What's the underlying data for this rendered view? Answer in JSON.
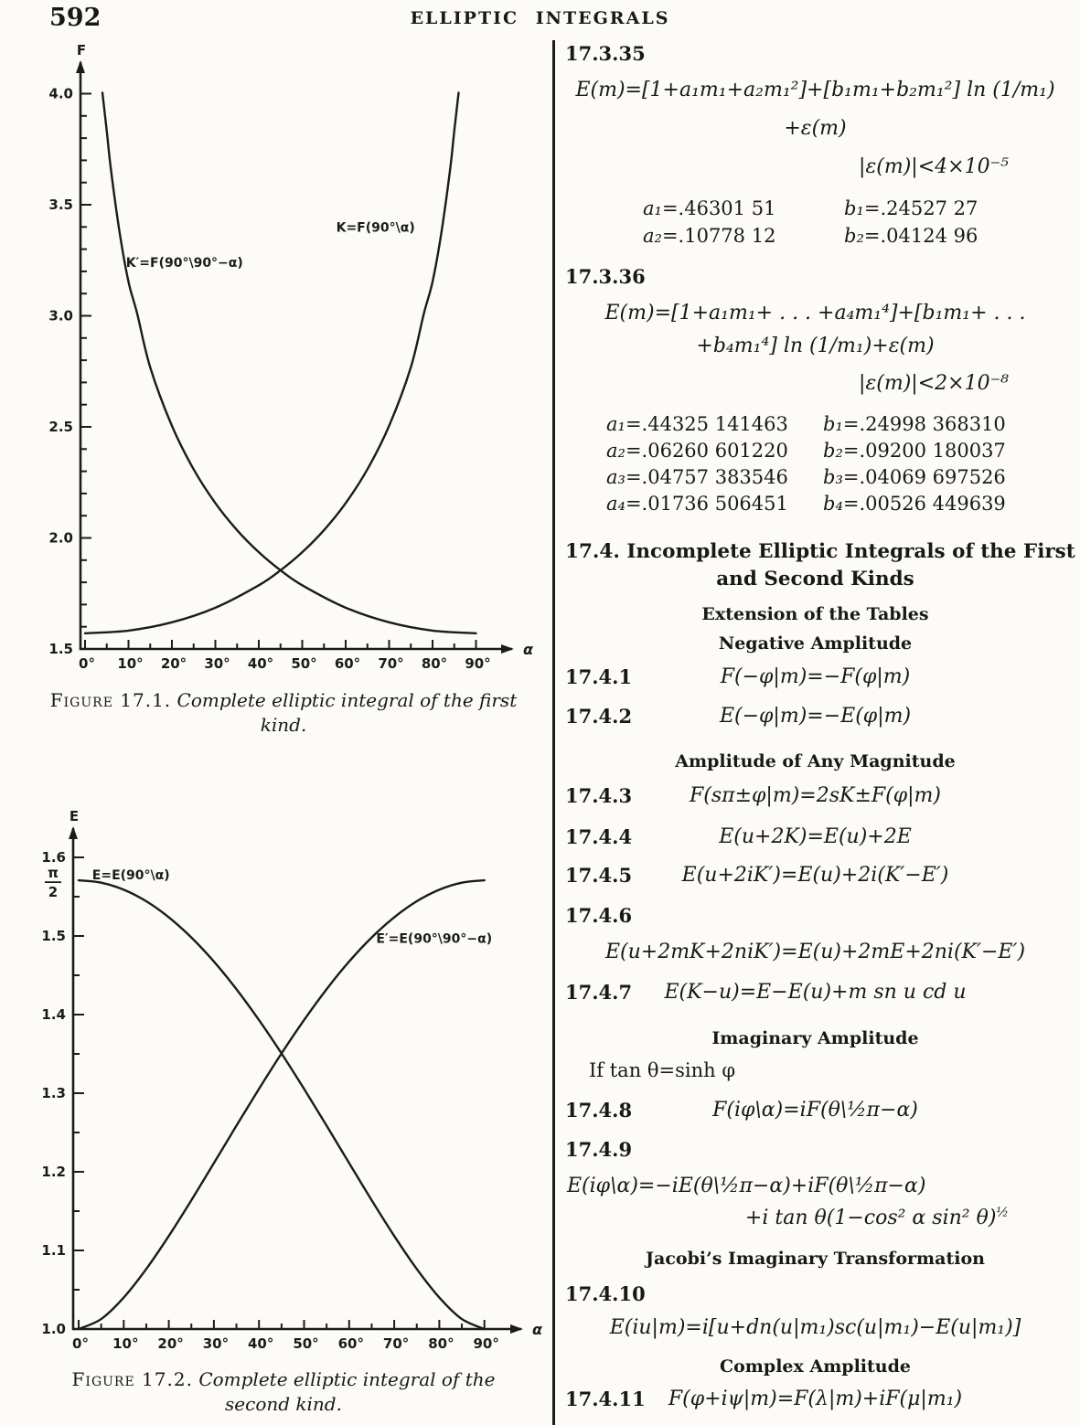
{
  "page": {
    "number": "592",
    "header": "ELLIPTIC INTEGRALS"
  },
  "eq17335": {
    "num": "17.3.35",
    "line1": "E(m)=[1+a₁m₁+a₂m₁²]+[b₁m₁+b₂m₁²] ln (1/m₁)",
    "line2": "+ε(m)",
    "bound": "|ε(m)|<4×10⁻⁵",
    "constants": [
      [
        "a₁",
        "=.46301 51",
        "b₁",
        "=.24527 27"
      ],
      [
        "a₂",
        "=.10778 12",
        "b₂",
        "=.04124 96"
      ]
    ]
  },
  "eq17336": {
    "num": "17.3.36",
    "line1": "E(m)=[1+a₁m₁+ . . . +a₄m₁⁴]+[b₁m₁+ . . .",
    "line2": "+b₄m₁⁴] ln (1/m₁)+ε(m)",
    "bound": "|ε(m)|<2×10⁻⁸",
    "constants": [
      [
        "a₁",
        "=.44325 141463",
        "b₁",
        "=.24998 368310"
      ],
      [
        "a₂",
        "=.06260 601220",
        "b₂",
        "=.09200 180037"
      ],
      [
        "a₃",
        "=.04757 383546",
        "b₃",
        "=.04069 697526"
      ],
      [
        "a₄",
        "=.01736 506451",
        "b₄",
        "=.00526 449639"
      ]
    ]
  },
  "s174": {
    "heading1": "17.4. Incomplete Elliptic Integrals of the First",
    "heading2": "and Second Kinds",
    "sub_extension": "Extension of the Tables",
    "sub_negative": "Negative Amplitude",
    "eq1": {
      "num": "17.4.1",
      "f": "F(−φ|m)=−F(φ|m)"
    },
    "eq2": {
      "num": "17.4.2",
      "f": "E(−φ|m)=−E(φ|m)"
    },
    "sub_any": "Amplitude of Any Magnitude",
    "eq3": {
      "num": "17.4.3",
      "f": "F(sπ±φ|m)=2sK±F(φ|m)"
    },
    "eq4": {
      "num": "17.4.4",
      "f": "E(u+2K)=E(u)+2E"
    },
    "eq5": {
      "num": "17.4.5",
      "f": "E(u+2iK′)=E(u)+2i(K′−E′)"
    },
    "eq6": {
      "num": "17.4.6",
      "f": "E(u+2mK+2niK′)=E(u)+2mE+2ni(K′−E′)"
    },
    "eq7": {
      "num": "17.4.7",
      "f": "E(K−u)=E−E(u)+m sn u cd u"
    },
    "sub_imag": "Imaginary Amplitude",
    "if_line": "If tan θ=sinh φ",
    "eq8": {
      "num": "17.4.8",
      "f": "F(iφ\\α)=iF(θ\\½π−α)"
    },
    "eq9": {
      "num": "17.4.9",
      "f1": "E(iφ\\α)=−iE(θ\\½π−α)+iF(θ\\½π−α)",
      "f2": "+i tan θ(1−cos² α sin² θ)",
      "f2sup": "½"
    },
    "sub_jacobi": "Jacobi’s Imaginary Transformation",
    "eq10": {
      "num": "17.4.10",
      "f": "E(iu|m)=i[u+dn(u|m₁)sc(u|m₁)−E(u|m₁)]"
    },
    "sub_complex": "Complex Amplitude",
    "eq11": {
      "num": "17.4.11",
      "f": "F(φ+iψ|m)=F(λ|m)+iF(μ|m₁)"
    }
  },
  "figure1": {
    "caption_label": "Figure 17.1.",
    "caption_line1": "Complete elliptic integral of the first",
    "caption_line2": "kind."
  },
  "figure2": {
    "caption_label": "Figure 17.2.",
    "caption_line1": "Complete elliptic integral of the",
    "caption_line2": "second kind."
  },
  "ink_color": "#1b1b1b",
  "chart_data": [
    {
      "type": "line",
      "title": "Complete elliptic integral of the first kind",
      "xlabel": "α",
      "ylabel": "F",
      "xlim": [
        0,
        90
      ],
      "ylim": [
        1.5,
        4.0
      ],
      "grid": false,
      "legend_position": "inline-curve-labels",
      "xtick_labels": [
        "0°",
        "10°",
        "20°",
        "30°",
        "40°",
        "50°",
        "60°",
        "70°",
        "80°",
        "90°"
      ],
      "xtick_values": [
        0,
        10,
        20,
        30,
        40,
        50,
        60,
        70,
        80,
        90
      ],
      "xtick_minor_step": 5,
      "ytick_labels": [
        "1.5",
        "2.0",
        "2.5",
        "3.0",
        "3.5",
        "4.0"
      ],
      "ytick_values": [
        1.5,
        2.0,
        2.5,
        3.0,
        3.5,
        4.0
      ],
      "ytick_minor_step": 0.1,
      "series": [
        {
          "name": "K=F(90°\\α)",
          "x": [
            0,
            10,
            20,
            30,
            40,
            45,
            50,
            55,
            60,
            65,
            70,
            75,
            78,
            80,
            82,
            84,
            85,
            86
          ],
          "values": [
            1.5708,
            1.5828,
            1.62,
            1.6858,
            1.7868,
            1.8541,
            1.9356,
            2.0347,
            2.1565,
            2.3088,
            2.5046,
            2.7681,
            3.01,
            3.1534,
            3.3699,
            3.6519,
            3.8317,
            4.0044
          ],
          "label": {
            "x": 81,
            "y": 3.4,
            "anchor": "end",
            "dx": -24
          }
        },
        {
          "name": "K′=F(90°\\90°−α)",
          "x": [
            4,
            5,
            6,
            8,
            10,
            12,
            15,
            20,
            25,
            30,
            35,
            40,
            45,
            50,
            60,
            70,
            80,
            90
          ],
          "values": [
            4.0044,
            3.8317,
            3.6519,
            3.3699,
            3.1534,
            3.01,
            2.7681,
            2.5046,
            2.3088,
            2.1565,
            2.0347,
            1.9356,
            1.8541,
            1.7868,
            1.6858,
            1.62,
            1.5828,
            1.5708
          ],
          "label": {
            "x": 9,
            "y": 3.24,
            "anchor": "start",
            "dx": 2
          }
        }
      ]
    },
    {
      "type": "line",
      "title": "Complete elliptic integral of the second kind",
      "xlabel": "α",
      "ylabel": "E",
      "xlim": [
        0,
        90
      ],
      "ylim": [
        1.0,
        1.6
      ],
      "grid": false,
      "legend_position": "inline-curve-labels",
      "xtick_labels": [
        "0°",
        "10°",
        "20°",
        "30°",
        "40°",
        "50°",
        "60°",
        "70°",
        "80°",
        "90°"
      ],
      "xtick_values": [
        0,
        10,
        20,
        30,
        40,
        50,
        60,
        70,
        80,
        90
      ],
      "xtick_minor_step": 5,
      "ytick_labels": [
        "1.0",
        "1.1",
        "1.2",
        "1.3",
        "1.4",
        "1.5",
        "1.6"
      ],
      "ytick_values": [
        1.0,
        1.1,
        1.2,
        1.3,
        1.4,
        1.5,
        1.6
      ],
      "ytick_minor_step": 0.05,
      "extra_ytick": {
        "label": "π/2",
        "value": 1.5708,
        "fraction": true,
        "numerator": "π",
        "denominator": "2"
      },
      "series": [
        {
          "name": "E=E(90°\\α)",
          "x": [
            0,
            5,
            10,
            15,
            20,
            25,
            30,
            35,
            40,
            45,
            50,
            55,
            60,
            65,
            70,
            75,
            80,
            85,
            90
          ],
          "values": [
            1.5708,
            1.5678,
            1.5589,
            1.5442,
            1.5238,
            1.4981,
            1.4675,
            1.4323,
            1.3931,
            1.3506,
            1.3055,
            1.2587,
            1.2111,
            1.1638,
            1.1184,
            1.0764,
            1.0401,
            1.0127,
            1.0
          ],
          "label": {
            "x": 3,
            "y": 1.578,
            "anchor": "start",
            "dx": 0
          }
        },
        {
          "name": "E′=E(90°\\90°−α)",
          "x": [
            0,
            5,
            10,
            15,
            20,
            25,
            30,
            35,
            40,
            45,
            50,
            55,
            60,
            65,
            70,
            75,
            80,
            85,
            90
          ],
          "values": [
            1.0,
            1.0127,
            1.0401,
            1.0764,
            1.1184,
            1.1638,
            1.2111,
            1.2587,
            1.3055,
            1.3506,
            1.3931,
            1.4323,
            1.4675,
            1.4981,
            1.5238,
            1.5442,
            1.5589,
            1.5678,
            1.5708
          ],
          "label": {
            "x": 66,
            "y": 1.497,
            "anchor": "start",
            "dx": 0
          }
        }
      ]
    }
  ]
}
